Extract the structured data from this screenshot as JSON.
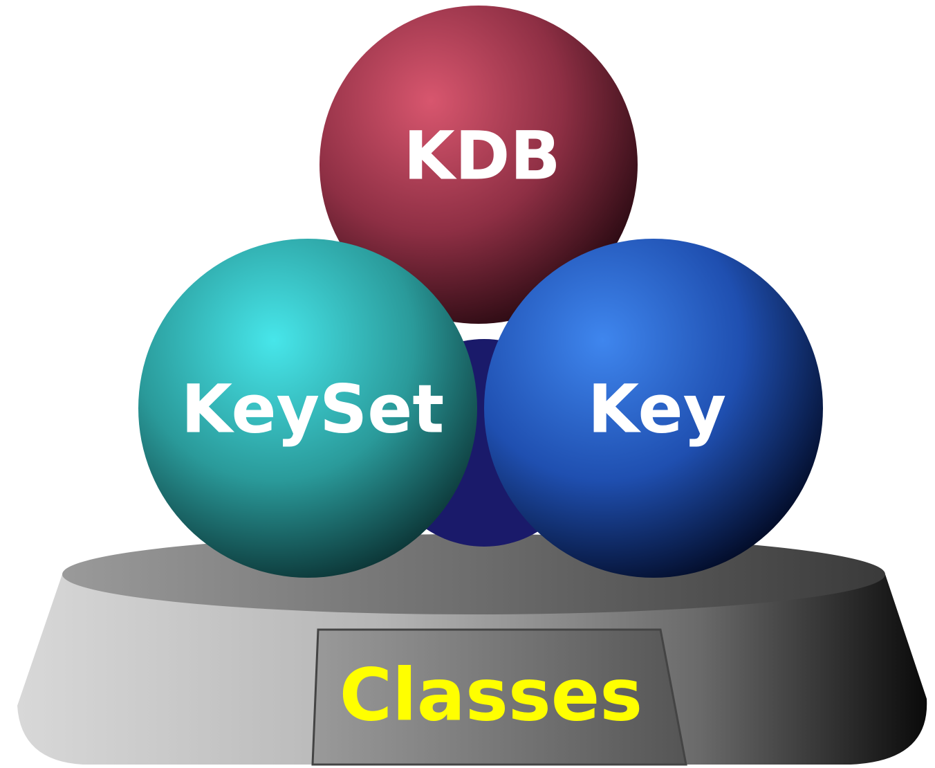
{
  "spheres": [
    {
      "label": "KDB"
    },
    {
      "label": "KeySet"
    },
    {
      "label": "Key"
    }
  ],
  "plaque": {
    "label": "Classes"
  }
}
